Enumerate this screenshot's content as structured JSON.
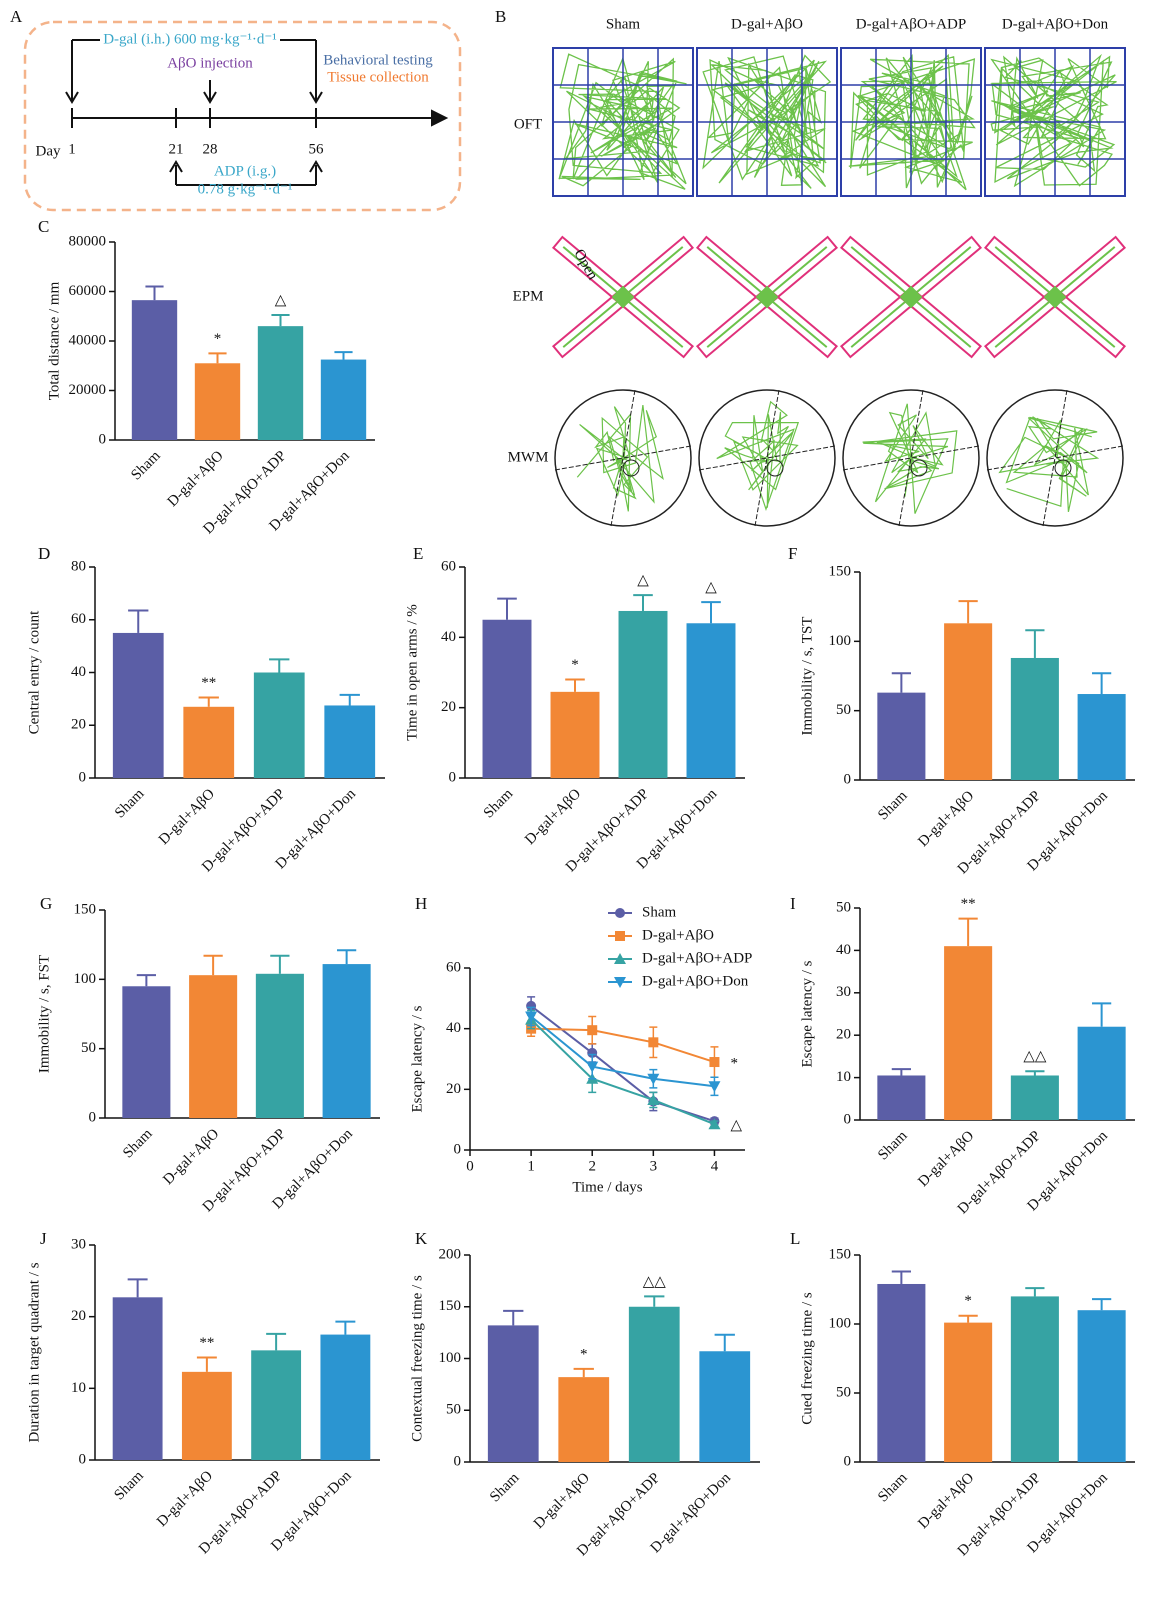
{
  "timeline": {
    "label": "A",
    "dgal": "D-gal (i.h.) 600 mg·kg⁻¹·d⁻¹",
    "abo": "AβO injection",
    "behavior": "Behavioral testing",
    "tissue": "Tissue collection",
    "day_label": "Day",
    "days": [
      1,
      21,
      28,
      56
    ],
    "adp": "ADP (i.g.)",
    "adp_dose": "0.78 g·kg⁻¹·d⁻¹"
  },
  "tracking": {
    "label": "B",
    "groups": [
      "Sham",
      "D-gal+AβO",
      "D-gal+AβO+ADP",
      "D-gal+AβO+Don"
    ],
    "tests": [
      "OFT",
      "EPM",
      "MWM"
    ],
    "open_label": "Open"
  },
  "chart_data": [
    {
      "type": "bar",
      "panel": "C",
      "ylabel": "Total distance / mm",
      "categories": [
        "Sham",
        "D-gal+AβO",
        "D-gal+AβO+ADP",
        "D-gal+AβO+Don"
      ],
      "values": [
        56500,
        31000,
        46000,
        32500
      ],
      "errors": [
        5500,
        4000,
        4500,
        3000
      ],
      "significance": [
        null,
        "*",
        "△",
        null
      ],
      "colors": [
        "#5b5ea6",
        "#f28735",
        "#36a3a3",
        "#2b95d1"
      ],
      "ylim": [
        0,
        80000
      ],
      "yticks": [
        0,
        20000,
        40000,
        60000,
        80000
      ]
    },
    {
      "type": "bar",
      "panel": "D",
      "ylabel": "Central entry / count",
      "categories": [
        "Sham",
        "D-gal+AβO",
        "D-gal+AβO+ADP",
        "D-gal+AβO+Don"
      ],
      "values": [
        55,
        27,
        40,
        27.5
      ],
      "errors": [
        8.5,
        3.5,
        5,
        4
      ],
      "significance": [
        null,
        "**",
        null,
        null
      ],
      "colors": [
        "#5b5ea6",
        "#f28735",
        "#36a3a3",
        "#2b95d1"
      ],
      "ylim": [
        0,
        80
      ],
      "yticks": [
        0,
        20,
        40,
        60,
        80
      ]
    },
    {
      "type": "bar",
      "panel": "E",
      "ylabel": "Time in open arms / %",
      "categories": [
        "Sham",
        "D-gal+AβO",
        "D-gal+AβO+ADP",
        "D-gal+AβO+Don"
      ],
      "values": [
        45,
        24.5,
        47.5,
        44
      ],
      "errors": [
        6,
        3.5,
        4.5,
        6
      ],
      "significance": [
        null,
        "*",
        "△",
        "△"
      ],
      "colors": [
        "#5b5ea6",
        "#f28735",
        "#36a3a3",
        "#2b95d1"
      ],
      "ylim": [
        0,
        60
      ],
      "yticks": [
        0,
        20,
        40,
        60
      ]
    },
    {
      "type": "bar",
      "panel": "F",
      "ylabel": "Immobility / s, TST",
      "categories": [
        "Sham",
        "D-gal+AβO",
        "D-gal+AβO+ADP",
        "D-gal+AβO+Don"
      ],
      "values": [
        63,
        113,
        88,
        62
      ],
      "errors": [
        14,
        16,
        20,
        15
      ],
      "colors": [
        "#5b5ea6",
        "#f28735",
        "#36a3a3",
        "#2b95d1"
      ],
      "ylim": [
        0,
        150
      ],
      "yticks": [
        0,
        50,
        100,
        150
      ]
    },
    {
      "type": "bar",
      "panel": "G",
      "ylabel": "Immobility / s, FST",
      "categories": [
        "Sham",
        "D-gal+AβO",
        "D-gal+AβO+ADP",
        "D-gal+AβO+Don"
      ],
      "values": [
        95,
        103,
        104,
        111
      ],
      "errors": [
        8,
        14,
        13,
        10
      ],
      "colors": [
        "#5b5ea6",
        "#f28735",
        "#36a3a3",
        "#2b95d1"
      ],
      "ylim": [
        0,
        150
      ],
      "yticks": [
        0,
        50,
        100,
        150
      ]
    },
    {
      "type": "line",
      "panel": "H",
      "xlabel": "Time / days",
      "ylabel": "Escape latency / s",
      "x": [
        1,
        2,
        3,
        4
      ],
      "series": [
        {
          "name": "Sham",
          "color": "#5b5ea6",
          "marker": "circle",
          "values": [
            47.5,
            32,
            16,
            9.5
          ],
          "errors": [
            3,
            3,
            3,
            1
          ]
        },
        {
          "name": "D-gal+AβO",
          "color": "#f28735",
          "marker": "square",
          "values": [
            40,
            39.5,
            35.5,
            29
          ],
          "errors": [
            2.5,
            4.5,
            5,
            5
          ],
          "significance": "*"
        },
        {
          "name": "D-gal+AβO+ADP",
          "color": "#36a3a3",
          "marker": "triangle",
          "values": [
            43,
            23.5,
            16.5,
            8.5
          ],
          "errors": [
            3,
            4.5,
            2.5,
            1
          ],
          "significance": "△"
        },
        {
          "name": "D-gal+AβO+Don",
          "color": "#2b95d1",
          "marker": "triangle-down",
          "values": [
            44,
            27.5,
            23.5,
            21
          ],
          "errors": [
            3,
            4,
            3,
            3
          ]
        }
      ],
      "xlim": [
        0,
        4.5
      ],
      "xticks": [
        0,
        1,
        2,
        3,
        4
      ],
      "ylim": [
        0,
        60
      ],
      "yticks": [
        0,
        20,
        40,
        60
      ]
    },
    {
      "type": "bar",
      "panel": "I",
      "ylabel": "Escape latency / s",
      "categories": [
        "Sham",
        "D-gal+AβO",
        "D-gal+AβO+ADP",
        "D-gal+AβO+Don"
      ],
      "values": [
        10.5,
        41,
        10.5,
        22
      ],
      "errors": [
        1.5,
        6.5,
        1,
        5.5
      ],
      "significance": [
        null,
        "**",
        "△△",
        null
      ],
      "colors": [
        "#5b5ea6",
        "#f28735",
        "#36a3a3",
        "#2b95d1"
      ],
      "ylim": [
        0,
        50
      ],
      "yticks": [
        0,
        10,
        20,
        30,
        40,
        50
      ]
    },
    {
      "type": "bar",
      "panel": "J",
      "ylabel": "Duration in target quadrant / s",
      "categories": [
        "Sham",
        "D-gal+AβO",
        "D-gal+AβO+ADP",
        "D-gal+AβO+Don"
      ],
      "values": [
        22.7,
        12.3,
        15.3,
        17.5
      ],
      "errors": [
        2.5,
        2,
        2.3,
        1.8
      ],
      "significance": [
        null,
        "**",
        null,
        null
      ],
      "colors": [
        "#5b5ea6",
        "#f28735",
        "#36a3a3",
        "#2b95d1"
      ],
      "ylim": [
        0,
        30
      ],
      "yticks": [
        0,
        10,
        20,
        30
      ]
    },
    {
      "type": "bar",
      "panel": "K",
      "ylabel": "Contextual freezing time / s",
      "categories": [
        "Sham",
        "D-gal+AβO",
        "D-gal+AβO+ADP",
        "D-gal+AβO+Don"
      ],
      "values": [
        132,
        82,
        150,
        107
      ],
      "errors": [
        14,
        8,
        10,
        16
      ],
      "significance": [
        null,
        "*",
        "△△",
        null
      ],
      "colors": [
        "#5b5ea6",
        "#f28735",
        "#36a3a3",
        "#2b95d1"
      ],
      "ylim": [
        0,
        200
      ],
      "yticks": [
        0,
        50,
        100,
        150,
        200
      ]
    },
    {
      "type": "bar",
      "panel": "L",
      "ylabel": "Cued freezing time / s",
      "categories": [
        "Sham",
        "D-gal+AβO",
        "D-gal+AβO+ADP",
        "D-gal+AβO+Don"
      ],
      "values": [
        129,
        101,
        120,
        110
      ],
      "errors": [
        9,
        5,
        6,
        8
      ],
      "significance": [
        null,
        "*",
        null,
        null
      ],
      "colors": [
        "#5b5ea6",
        "#f28735",
        "#36a3a3",
        "#2b95d1"
      ],
      "ylim": [
        0,
        150
      ],
      "yticks": [
        0,
        50,
        100,
        150
      ]
    }
  ]
}
